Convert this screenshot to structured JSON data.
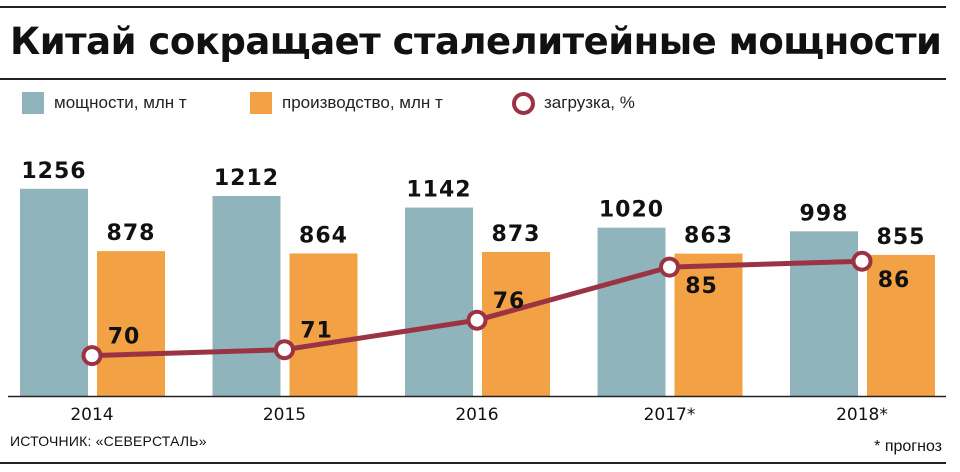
{
  "title": "Китай сокращает сталелитейные мощности",
  "colors": {
    "capacity": "#8fb4bc",
    "production": "#f2a145",
    "utilization": "#9b3344"
  },
  "legend": {
    "capacity": "мощности, млн т",
    "production": "производство, млн т",
    "utilization": "загрузка, %"
  },
  "source": "ИСТОЧНИК: «СЕВЕРСТАЛЬ»",
  "footnote": "* прогноз",
  "chart_data": {
    "type": "bar",
    "categories": [
      "2014",
      "2015",
      "2016",
      "2017*",
      "2018*"
    ],
    "series": [
      {
        "name": "мощности, млн т",
        "type": "bar",
        "values": [
          1256,
          1212,
          1142,
          1020,
          998
        ]
      },
      {
        "name": "производство, млн т",
        "type": "bar",
        "values": [
          878,
          864,
          873,
          863,
          855
        ]
      },
      {
        "name": "загрузка, %",
        "type": "line",
        "values": [
          70,
          71,
          76,
          85,
          86
        ]
      }
    ],
    "grid": false,
    "legend_position": "top-left"
  }
}
